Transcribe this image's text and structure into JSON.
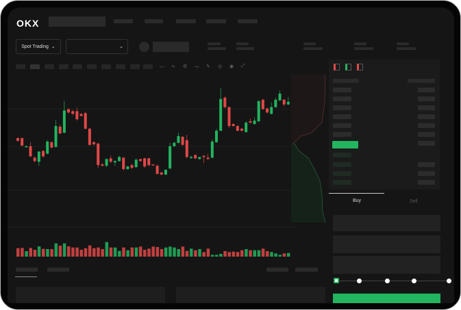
{
  "brand": {
    "logo": "OKX"
  },
  "header": {
    "nav_items": [
      "",
      "",
      "",
      "",
      ""
    ]
  },
  "toolbar": {
    "market_button": "Spot Trading",
    "market_chevron": "chevron-down-icon",
    "pair_chevron": "chevron-down-icon"
  },
  "chart_tools": [
    "candles-icon",
    "indicator-icon",
    "settings-icon",
    "line-icon",
    "pen-icon",
    "circle-icon",
    "target-icon",
    "expand-icon"
  ],
  "trade": {
    "tab_buy": "Buy",
    "tab_sell": "Sell",
    "active_tab": "Buy",
    "slider_percent": 0
  },
  "colors": {
    "up": "#22b45f",
    "down": "#e04848",
    "background": "#151515",
    "panel": "#1b1b1b"
  },
  "chart_data": {
    "type": "candlestick",
    "candles_ochl_note_order": [
      "open",
      "close",
      "high",
      "low"
    ],
    "candles": [
      [
        57,
        53,
        58,
        52
      ],
      [
        57,
        46,
        58,
        45
      ],
      [
        44,
        45,
        46,
        43
      ],
      [
        45,
        30,
        51,
        29
      ],
      [
        28,
        23,
        30,
        21
      ],
      [
        22,
        37,
        38,
        16
      ],
      [
        38,
        30,
        39,
        28
      ],
      [
        34,
        52,
        54,
        33
      ],
      [
        51,
        43,
        52,
        42
      ],
      [
        44,
        75,
        84,
        43
      ],
      [
        74,
        64,
        77,
        63
      ],
      [
        65,
        98,
        112,
        64
      ],
      [
        100,
        95,
        101,
        94
      ],
      [
        97,
        93,
        99,
        91
      ],
      [
        97,
        85,
        102,
        83
      ],
      [
        93,
        90,
        94,
        89
      ],
      [
        94,
        71,
        96,
        70
      ],
      [
        71,
        47,
        72,
        46
      ],
      [
        51,
        48,
        52,
        46
      ],
      [
        49,
        17,
        50,
        13
      ],
      [
        18,
        16,
        20,
        15
      ],
      [
        16,
        26,
        27,
        14
      ],
      [
        27,
        22,
        31,
        20
      ],
      [
        21,
        23,
        24,
        16
      ],
      [
        23,
        29,
        31,
        22
      ],
      [
        28,
        11,
        29,
        9
      ],
      [
        11,
        15,
        16,
        10
      ],
      [
        17,
        13,
        19,
        11
      ],
      [
        14,
        25,
        27,
        13
      ],
      [
        26,
        23,
        26,
        22
      ],
      [
        27,
        15,
        28,
        13
      ],
      [
        27,
        17,
        28,
        15
      ],
      [
        18,
        17,
        18,
        16
      ],
      [
        16,
        4,
        18,
        3
      ],
      [
        6,
        3,
        7,
        2
      ],
      [
        3,
        10,
        11,
        2
      ],
      [
        12,
        45,
        50,
        11
      ],
      [
        45,
        50,
        52,
        44
      ],
      [
        50,
        60,
        65,
        49
      ],
      [
        59,
        47,
        60,
        46
      ],
      [
        54,
        29,
        62,
        27
      ],
      [
        28,
        29,
        31,
        26
      ],
      [
        32,
        27,
        33,
        26
      ],
      [
        26,
        29,
        29,
        25
      ],
      [
        31,
        29,
        31,
        20
      ],
      [
        28,
        26,
        34,
        25
      ],
      [
        28,
        52,
        55,
        27
      ],
      [
        51,
        68,
        71,
        50
      ],
      [
        68,
        115,
        131,
        67
      ],
      [
        117,
        103,
        119,
        101
      ],
      [
        103,
        75,
        104,
        72
      ],
      [
        78,
        75,
        79,
        74
      ],
      [
        75,
        68,
        76,
        67
      ],
      [
        71,
        68,
        72,
        67
      ],
      [
        66,
        80,
        82,
        65
      ],
      [
        82,
        80,
        86,
        79
      ],
      [
        78,
        83,
        88,
        77
      ],
      [
        82,
        112,
        113,
        81
      ],
      [
        114,
        100,
        115,
        99
      ],
      [
        101,
        95,
        102,
        94
      ],
      [
        93,
        103,
        110,
        92
      ],
      [
        103,
        114,
        117,
        102
      ],
      [
        113,
        123,
        128,
        112
      ],
      [
        114,
        107,
        115,
        104
      ],
      [
        107,
        111,
        118,
        106
      ]
    ],
    "volumes": [
      37,
      38,
      24,
      38,
      30,
      45,
      34,
      33,
      33,
      58,
      48,
      58,
      45,
      40,
      40,
      30,
      37,
      49,
      37,
      40,
      33,
      64,
      40,
      40,
      25,
      40,
      28,
      40,
      40,
      44,
      30,
      35,
      44,
      42,
      33,
      40,
      44,
      40,
      33,
      44,
      25,
      35,
      28,
      33,
      20,
      35,
      8,
      8,
      12,
      24,
      20,
      22,
      20,
      28,
      33,
      28,
      28,
      28,
      35,
      24,
      20,
      14,
      8,
      14,
      16
    ],
    "grid": true
  }
}
